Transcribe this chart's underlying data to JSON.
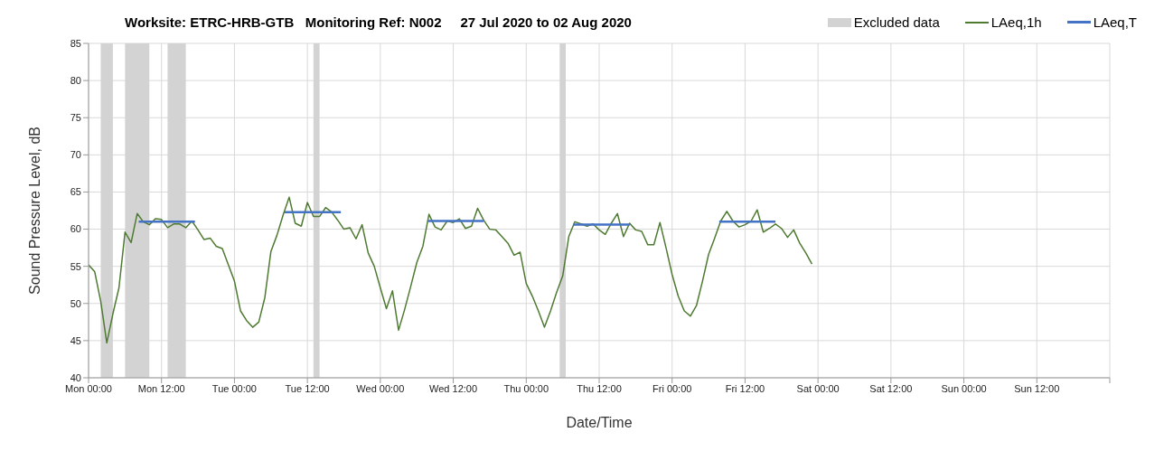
{
  "chart_data": {
    "type": "line",
    "title": "Worksite: ETRC-HRB-GTB   Monitoring Ref: N002     27 Jul 2020 to 02 Aug 2020",
    "xlabel": "Date/Time",
    "ylabel": "Sound Pressure Level, dB",
    "series": [
      {
        "name": "LAeq,1h",
        "color": "#4f7a32",
        "x": [
          "2020-07-27T00:00",
          "2020-07-27T01:00",
          "2020-07-27T02:00",
          "2020-07-27T03:00",
          "2020-07-27T04:00",
          "2020-07-27T05:00",
          "2020-07-27T06:00",
          "2020-07-27T07:00",
          "2020-07-27T08:00",
          "2020-07-27T09:00",
          "2020-07-27T10:00",
          "2020-07-27T11:00",
          "2020-07-27T12:00",
          "2020-07-27T13:00",
          "2020-07-27T14:00",
          "2020-07-27T15:00",
          "2020-07-27T16:00",
          "2020-07-27T17:00",
          "2020-07-27T18:00",
          "2020-07-27T19:00",
          "2020-07-27T20:00",
          "2020-07-27T21:00",
          "2020-07-27T22:00",
          "2020-07-27T23:00",
          "2020-07-28T00:00",
          "2020-07-28T01:00",
          "2020-07-28T02:00",
          "2020-07-28T03:00",
          "2020-07-28T04:00",
          "2020-07-28T05:00",
          "2020-07-28T06:00",
          "2020-07-28T07:00",
          "2020-07-28T08:00",
          "2020-07-28T09:00",
          "2020-07-28T10:00",
          "2020-07-28T11:00",
          "2020-07-28T12:00",
          "2020-07-28T13:00",
          "2020-07-28T14:00",
          "2020-07-28T15:00",
          "2020-07-28T16:00",
          "2020-07-28T17:00",
          "2020-07-28T18:00",
          "2020-07-28T19:00",
          "2020-07-28T20:00",
          "2020-07-28T21:00",
          "2020-07-28T22:00",
          "2020-07-28T23:00",
          "2020-07-29T00:00",
          "2020-07-29T01:00",
          "2020-07-29T02:00",
          "2020-07-29T03:00",
          "2020-07-29T04:00",
          "2020-07-29T05:00",
          "2020-07-29T06:00",
          "2020-07-29T07:00",
          "2020-07-29T08:00",
          "2020-07-29T09:00",
          "2020-07-29T10:00",
          "2020-07-29T11:00",
          "2020-07-29T12:00",
          "2020-07-29T13:00",
          "2020-07-29T14:00",
          "2020-07-29T15:00",
          "2020-07-29T16:00",
          "2020-07-29T17:00",
          "2020-07-29T18:00",
          "2020-07-29T19:00",
          "2020-07-29T20:00",
          "2020-07-29T21:00",
          "2020-07-29T22:00",
          "2020-07-29T23:00",
          "2020-07-30T00:00",
          "2020-07-30T01:00",
          "2020-07-30T02:00",
          "2020-07-30T03:00",
          "2020-07-30T04:00",
          "2020-07-30T05:00",
          "2020-07-30T06:00",
          "2020-07-30T07:00",
          "2020-07-30T08:00",
          "2020-07-30T09:00",
          "2020-07-30T10:00",
          "2020-07-30T11:00",
          "2020-07-30T12:00",
          "2020-07-30T13:00",
          "2020-07-30T14:00",
          "2020-07-30T15:00",
          "2020-07-30T16:00",
          "2020-07-30T17:00",
          "2020-07-30T18:00",
          "2020-07-30T19:00",
          "2020-07-30T20:00",
          "2020-07-30T21:00",
          "2020-07-30T22:00",
          "2020-07-30T23:00",
          "2020-07-31T00:00",
          "2020-07-31T01:00",
          "2020-07-31T02:00",
          "2020-07-31T03:00",
          "2020-07-31T04:00",
          "2020-07-31T05:00",
          "2020-07-31T06:00",
          "2020-07-31T07:00",
          "2020-07-31T08:00",
          "2020-07-31T09:00",
          "2020-07-31T10:00",
          "2020-07-31T11:00",
          "2020-07-31T12:00",
          "2020-07-31T13:00",
          "2020-07-31T14:00",
          "2020-07-31T15:00",
          "2020-07-31T16:00",
          "2020-07-31T17:00",
          "2020-07-31T18:00",
          "2020-07-31T19:00",
          "2020-07-31T20:00",
          "2020-07-31T21:00",
          "2020-07-31T22:00",
          "2020-07-31T23:00"
        ],
        "values": [
          55.2,
          54.3,
          50.3,
          44.7,
          48.6,
          52.1,
          59.6,
          58.2,
          62.1,
          61.0,
          60.6,
          61.4,
          61.3,
          60.2,
          60.7,
          60.7,
          60.2,
          61.1,
          59.9,
          58.6,
          58.8,
          57.7,
          57.4,
          55.2,
          53.0,
          49.0,
          47.7,
          46.8,
          47.5,
          50.8,
          57.0,
          59.2,
          61.9,
          64.3,
          60.8,
          60.4,
          63.6,
          61.7,
          61.7,
          62.9,
          62.3,
          61.2,
          60.0,
          60.2,
          58.7,
          60.6,
          56.8,
          55.0,
          52.1,
          49.3,
          51.7,
          46.4,
          49.2,
          52.3,
          55.5,
          57.7,
          62.0,
          60.3,
          59.9,
          61.1,
          60.9,
          61.4,
          60.1,
          60.4,
          62.8,
          61.2,
          60.0,
          59.9,
          59.0,
          58.1,
          56.5,
          56.9,
          52.7,
          51.0,
          49.0,
          46.8,
          49.0,
          51.5,
          53.7,
          59.0,
          61.0,
          60.7,
          60.4,
          60.7,
          59.9,
          59.3,
          60.8,
          62.1,
          59.0,
          60.8,
          59.9,
          59.7,
          57.9,
          57.9,
          60.9,
          57.5,
          53.9,
          51.0,
          49.0,
          48.3,
          49.7,
          53.0,
          56.6,
          58.8,
          61.1,
          62.4,
          61.1,
          60.3,
          60.6,
          61.1,
          62.6,
          59.6,
          60.1,
          60.7,
          60.1,
          58.9,
          59.9,
          58.1,
          56.8,
          55.3
        ]
      },
      {
        "name": "LAeq,T",
        "color": "#4472c4",
        "x": [
          "2020-07-27T08:15",
          "2020-07-27T17:30",
          "2020-07-28T00:00",
          "2020-07-28T08:15",
          "2020-07-28T17:30",
          "2020-07-29T00:00",
          "2020-07-29T07:45",
          "2020-07-29T17:00",
          "2020-07-30T00:00",
          "2020-07-30T07:45",
          "2020-07-30T17:00",
          "2020-07-31T00:00",
          "2020-07-31T07:45",
          "2020-07-31T17:00"
        ],
        "values": [
          61.0,
          61.0,
          null,
          62.3,
          62.3,
          null,
          61.1,
          61.1,
          null,
          60.6,
          60.6,
          null,
          61.0,
          61.0
        ]
      }
    ],
    "bands": [
      {
        "axis": "x",
        "from": "2020-07-27T02:00",
        "to": "2020-07-27T04:00",
        "label": "Excluded data",
        "color": "#d3d3d3"
      },
      {
        "axis": "x",
        "from": "2020-07-27T06:00",
        "to": "2020-07-27T10:00",
        "color": "#d3d3d3"
      },
      {
        "axis": "x",
        "from": "2020-07-27T13:00",
        "to": "2020-07-27T16:00",
        "color": "#d3d3d3"
      },
      {
        "axis": "x",
        "from": "2020-07-28T13:00",
        "to": "2020-07-28T14:00",
        "color": "#d3d3d3"
      },
      {
        "axis": "x",
        "from": "2020-07-30T05:30",
        "to": "2020-07-30T06:30",
        "color": "#d3d3d3"
      }
    ],
    "xlim": [
      "2020-07-27T00:00",
      "2020-08-03T00:00"
    ],
    "xticks": [
      {
        "value": "2020-07-27T00:00",
        "label": "Mon 00:00"
      },
      {
        "value": "2020-07-27T12:00",
        "label": "Mon 12:00"
      },
      {
        "value": "2020-07-28T00:00",
        "label": "Tue 00:00"
      },
      {
        "value": "2020-07-28T12:00",
        "label": "Tue 12:00"
      },
      {
        "value": "2020-07-29T00:00",
        "label": "Wed 00:00"
      },
      {
        "value": "2020-07-29T12:00",
        "label": "Wed 12:00"
      },
      {
        "value": "2020-07-30T00:00",
        "label": "Thu 00:00"
      },
      {
        "value": "2020-07-30T12:00",
        "label": "Thu 12:00"
      },
      {
        "value": "2020-07-31T00:00",
        "label": "Fri 00:00"
      },
      {
        "value": "2020-07-31T12:00",
        "label": "Fri 12:00"
      },
      {
        "value": "2020-08-01T00:00",
        "label": "Sat 00:00"
      },
      {
        "value": "2020-08-01T12:00",
        "label": "Sat 12:00"
      },
      {
        "value": "2020-08-02T00:00",
        "label": "Sun 00:00"
      },
      {
        "value": "2020-08-02T12:00",
        "label": "Sun 12:00"
      },
      {
        "value": "2020-08-03T00:00",
        "label": null
      }
    ],
    "ylim": [
      40,
      85
    ],
    "yticks": [
      40,
      45,
      50,
      55,
      60,
      65,
      70,
      75,
      80,
      85
    ],
    "grid": true,
    "legend": "top right",
    "marker": "none",
    "line_style": "solid"
  }
}
